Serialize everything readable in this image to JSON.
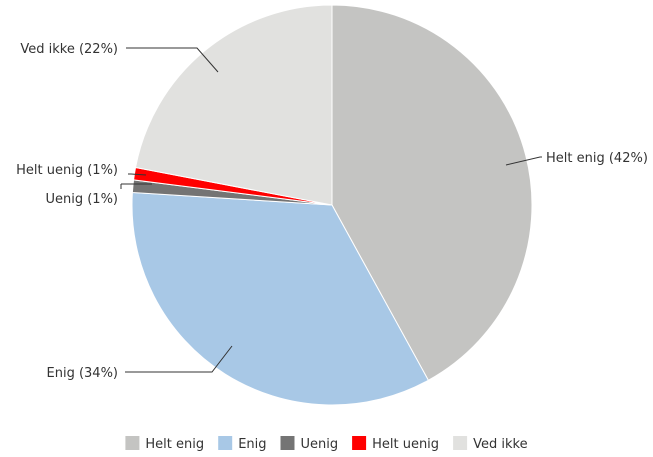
{
  "chart_data": {
    "type": "pie",
    "title": "",
    "slices": [
      {
        "name": "Helt enig",
        "value": 42,
        "label": "Helt enig (42%)",
        "color": "#c4c4c2"
      },
      {
        "name": "Enig",
        "value": 34,
        "label": "Enig (34%)",
        "color": "#a8c8e6"
      },
      {
        "name": "Uenig",
        "value": 1,
        "label": "Uenig (1%)",
        "color": "#747474"
      },
      {
        "name": "Helt uenig",
        "value": 1,
        "label": "Helt uenig (1%)",
        "color": "#ff0000"
      },
      {
        "name": "Ved ikke",
        "value": 22,
        "label": "Ved ikke (22%)",
        "color": "#e1e1df"
      }
    ],
    "start_angle_deg": 0,
    "direction": "clockwise",
    "legend": {
      "placement": "bottom",
      "entries": [
        "Helt enig",
        "Enig",
        "Uenig",
        "Helt uenig",
        "Ved ikke"
      ]
    }
  }
}
